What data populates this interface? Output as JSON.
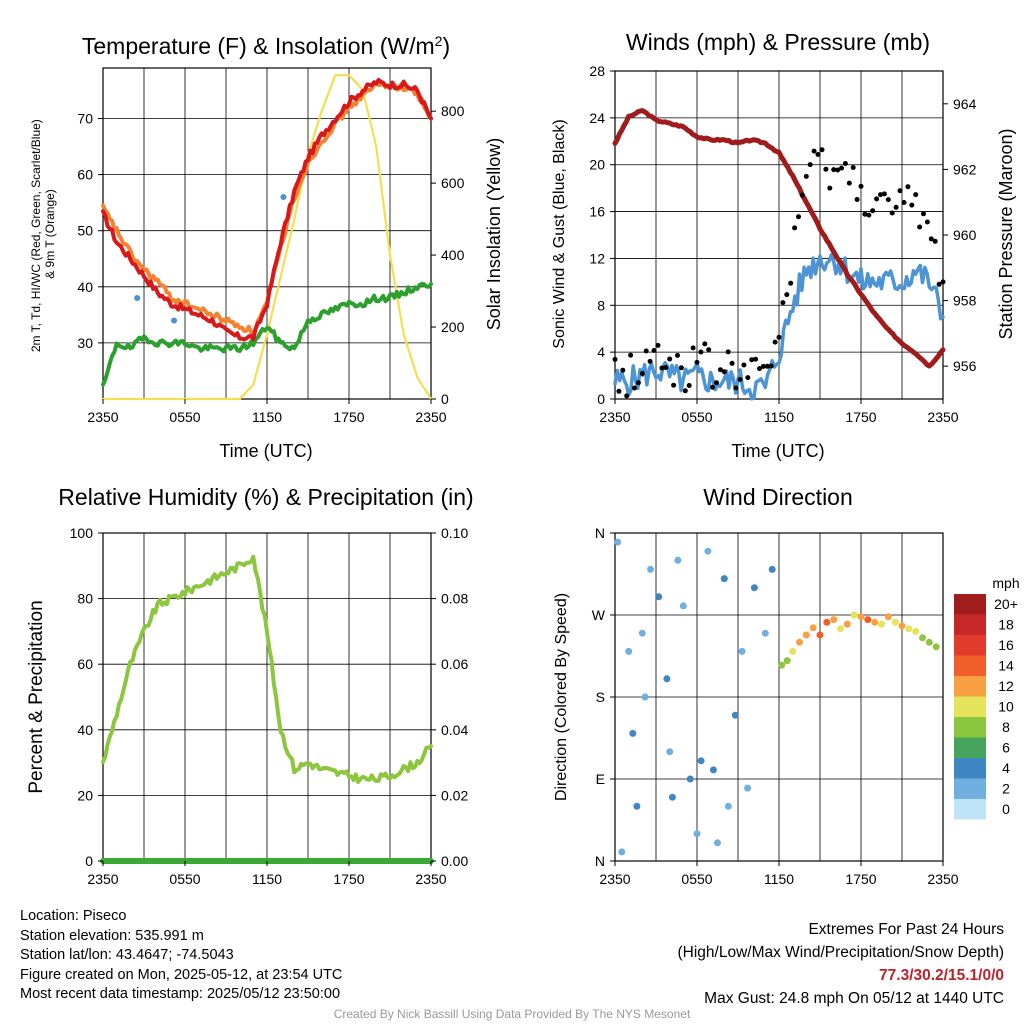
{
  "colors": {
    "temp_2m": "#d7191c",
    "dewpoint": "#2ca02c",
    "windchill": "#4a90d9",
    "temp_9m": "#f58231",
    "insolation": "#f5de50",
    "wind_speed": "#4d94d4",
    "wind_gust": "#000000",
    "pressure": "#a01c1c",
    "humidity": "#8cc63f",
    "precip": "#3aaa35"
  },
  "footer": {
    "location": "Location: Piseco",
    "elevation": "Station elevation: 535.991 m",
    "latlon": "Station lat/lon: 43.4647; -74.5043",
    "created": "Figure created on Mon, 2025-05-12, at 23:54 UTC",
    "timestamp": "Most recent data timestamp: 2025/05/12 23:50:00",
    "extremes_title": "Extremes For Past 24 Hours",
    "extremes_sub": "(High/Low/Max Wind/Precipitation/Snow Depth)",
    "extremes_values": "77.3/30.2/15.1/0/0",
    "max_gust": "Max Gust: 24.8 mph On 05/12 at 1440 UTC",
    "credit": "Created By Nick Bassill Using Data Provided By The NYS Mesonet"
  },
  "chart_data": [
    {
      "type": "line",
      "title": "Temperature (F) & Insolation (W/m²)",
      "xlabel": "Time (UTC)",
      "ylabel": "2m T, Td, HI/WC (Red, Green, Scarlet/Blue) & 9m T (Orange)",
      "ylabel_lines": [
        "2m T, Td, HI/WC (Red, Green, Scarlet/Blue)",
        "& 9m T (Orange)"
      ],
      "y2label": "Solar Insolation (Yellow)",
      "xticks": [
        "2350",
        "0550",
        "1150",
        "1750",
        "2350"
      ],
      "ylim": [
        20,
        79
      ],
      "yticks": [
        30,
        40,
        50,
        60,
        70
      ],
      "y2lim": [
        0,
        920
      ],
      "y2ticks": [
        0,
        200,
        400,
        600,
        800
      ],
      "grid": true,
      "series": [
        {
          "name": "2m T",
          "axis": "left",
          "color": "#d7191c",
          "x": [
            0,
            1,
            2,
            3,
            4,
            5,
            6,
            7,
            8,
            9,
            10,
            11,
            12,
            13,
            14,
            15,
            16,
            17,
            18,
            19,
            20,
            21,
            22,
            23,
            24
          ],
          "values": [
            53,
            48,
            45,
            42,
            39,
            37,
            36,
            35,
            34,
            32,
            31,
            31,
            37,
            48,
            57,
            63,
            67,
            70,
            73,
            75,
            76.5,
            76,
            76,
            75,
            70
          ]
        },
        {
          "name": "9m T",
          "axis": "left",
          "color": "#f58231",
          "x": [
            0,
            1,
            2,
            3,
            4,
            5,
            6,
            7,
            8,
            9,
            10,
            11,
            12,
            13,
            14,
            15,
            16,
            17,
            18,
            19,
            20,
            21,
            22,
            23,
            24
          ],
          "values": [
            54,
            50,
            46,
            43,
            41,
            38,
            37,
            36,
            35,
            34,
            33,
            32,
            37,
            47,
            56,
            62,
            66,
            69,
            72,
            74,
            76,
            76,
            75.5,
            74.5,
            70
          ]
        },
        {
          "name": "Td",
          "axis": "left",
          "color": "#2ca02c",
          "x": [
            0,
            1,
            2,
            3,
            4,
            5,
            6,
            7,
            8,
            9,
            10,
            11,
            12,
            13,
            14,
            15,
            16,
            17,
            18,
            19,
            20,
            21,
            22,
            23,
            24
          ],
          "values": [
            22,
            30,
            29,
            31,
            30,
            30,
            30,
            29,
            29,
            29,
            29,
            30,
            33,
            30,
            29,
            34,
            35,
            36,
            37,
            37,
            38,
            38,
            39,
            40,
            40.5
          ]
        },
        {
          "name": "HI/WC",
          "axis": "left",
          "color": "#4a90d9",
          "x": [
            2.5,
            5.2,
            13.2
          ],
          "values": [
            38,
            34,
            56
          ]
        },
        {
          "name": "Insolation",
          "axis": "right",
          "color": "#f5de50",
          "x": [
            0,
            1,
            2,
            3,
            4,
            5,
            6,
            7,
            8,
            9,
            10,
            11,
            12,
            13,
            14,
            15,
            16,
            17,
            18,
            19,
            20,
            21,
            22,
            23,
            24
          ],
          "values": [
            0,
            0,
            0,
            0,
            0,
            0,
            0,
            0,
            0,
            0,
            0,
            40,
            180,
            340,
            500,
            680,
            800,
            900,
            900,
            860,
            700,
            400,
            180,
            60,
            0
          ]
        }
      ]
    },
    {
      "type": "line",
      "title": "Winds (mph) & Pressure (mb)",
      "xlabel": "Time (UTC)",
      "ylabel": "Sonic Wind & Gust (Blue, Black)",
      "y2label": "Station Pressure (Maroon)",
      "xticks": [
        "2350",
        "0550",
        "1150",
        "1750",
        "2350"
      ],
      "ylim": [
        0,
        28
      ],
      "yticks": [
        0,
        4,
        8,
        12,
        16,
        20,
        24,
        28
      ],
      "y2lim": [
        955,
        965
      ],
      "y2ticks": [
        956,
        958,
        960,
        962,
        964
      ],
      "grid": true,
      "series": [
        {
          "name": "Sonic Wind",
          "axis": "left",
          "color": "#4d94d4",
          "x": [
            0,
            1,
            2,
            3,
            4,
            5,
            6,
            7,
            8,
            9,
            10,
            11,
            12,
            13,
            14,
            15,
            16,
            17,
            18,
            19,
            20,
            21,
            22,
            23,
            24
          ],
          "values": [
            1.5,
            1.5,
            2,
            2.5,
            2,
            1.5,
            2,
            1.5,
            1.5,
            1.5,
            1,
            1,
            4,
            8,
            11,
            12,
            12,
            11,
            10,
            10,
            10,
            10,
            11,
            10,
            7
          ]
        },
        {
          "name": "Gust",
          "axis": "left",
          "color": "#000000",
          "x": [
            0,
            1,
            2,
            3,
            4,
            5,
            6,
            7,
            8,
            9,
            10,
            11,
            12,
            13,
            14,
            15,
            16,
            17,
            18,
            19,
            20,
            21,
            22,
            23,
            24
          ],
          "values": [
            2,
            2,
            3,
            3.5,
            3,
            2.5,
            3,
            2.5,
            2.5,
            2.5,
            2,
            1.5,
            6,
            12,
            19,
            20,
            20,
            19,
            18,
            17,
            16,
            16,
            17,
            14,
            10
          ]
        },
        {
          "name": "Station Pressure",
          "axis": "right",
          "color": "#a01c1c",
          "x": [
            0,
            1,
            2,
            3,
            4,
            5,
            6,
            7,
            8,
            9,
            10,
            11,
            12,
            13,
            14,
            15,
            16,
            17,
            18,
            19,
            20,
            21,
            22,
            23,
            24
          ],
          "values": [
            962.8,
            963.6,
            963.8,
            963.5,
            963.4,
            963.3,
            963.0,
            962.9,
            962.9,
            962.8,
            962.9,
            962.8,
            962.5,
            961.8,
            961.0,
            960.2,
            959.5,
            958.8,
            958.2,
            957.6,
            957.1,
            956.7,
            956.4,
            956.0,
            956.5
          ]
        }
      ]
    },
    {
      "type": "line",
      "title": "Relative Humidity (%) & Precipitation (in)",
      "xlabel": "",
      "ylabel": "Percent & Precipitation",
      "xticks": [
        "2350",
        "0550",
        "1150",
        "1750",
        "2350"
      ],
      "ylim": [
        0,
        100
      ],
      "yticks": [
        0,
        20,
        40,
        60,
        80,
        100
      ],
      "y2lim": [
        0,
        0.1
      ],
      "y2ticks": [
        0.0,
        0.02,
        0.04,
        0.06,
        0.08,
        0.1
      ],
      "grid": true,
      "series": [
        {
          "name": "Relative Humidity",
          "axis": "left",
          "color": "#8cc63f",
          "x": [
            0,
            1,
            2,
            3,
            4,
            5,
            6,
            7,
            8,
            9,
            10,
            11,
            12,
            13,
            14,
            15,
            16,
            17,
            18,
            19,
            20,
            21,
            22,
            23,
            24
          ],
          "values": [
            30,
            45,
            60,
            70,
            78,
            80,
            82,
            84,
            86,
            88,
            90,
            93,
            70,
            40,
            28,
            30,
            28,
            27,
            26,
            25,
            25,
            26,
            28,
            30,
            35
          ]
        },
        {
          "name": "Precipitation",
          "axis": "right",
          "color": "#3aaa35",
          "x": [
            0,
            24
          ],
          "values": [
            0,
            0
          ]
        }
      ]
    },
    {
      "type": "scatter",
      "title": "Wind Direction",
      "xlabel": "",
      "ylabel": "Direction (Colored By Speed)",
      "xticks": [
        "2350",
        "0550",
        "1150",
        "1750",
        "2350"
      ],
      "yticks": [
        "N",
        "E",
        "S",
        "W",
        "N"
      ],
      "ylim": [
        0,
        360
      ],
      "grid": true,
      "legend": {
        "title": "mph",
        "placement": "right",
        "labels": [
          "20+",
          "18",
          "16",
          "14",
          "12",
          "10",
          "8",
          "6",
          "4",
          "2",
          "0"
        ],
        "colors": [
          "#a11d1d",
          "#c62828",
          "#e03b2b",
          "#f05f2a",
          "#f9a043",
          "#e4e35a",
          "#8cc63f",
          "#45a55c",
          "#3f86c4",
          "#6fb0e0",
          "#bfe4f8"
        ]
      },
      "points": [
        [
          0.2,
          350,
          1
        ],
        [
          0.5,
          10,
          2
        ],
        [
          1.0,
          230,
          2
        ],
        [
          1.3,
          140,
          4
        ],
        [
          1.6,
          60,
          3
        ],
        [
          2.0,
          250,
          1
        ],
        [
          2.2,
          180,
          1
        ],
        [
          2.6,
          320,
          2
        ],
        [
          3.2,
          290,
          3
        ],
        [
          3.8,
          200,
          4
        ],
        [
          4.0,
          120,
          2
        ],
        [
          4.2,
          70,
          3
        ],
        [
          4.6,
          330,
          2
        ],
        [
          5.0,
          280,
          1
        ],
        [
          5.5,
          90,
          4
        ],
        [
          6.0,
          30,
          2
        ],
        [
          6.3,
          110,
          3
        ],
        [
          6.8,
          340,
          1
        ],
        [
          7.2,
          100,
          4
        ],
        [
          7.5,
          20,
          2
        ],
        [
          8.0,
          310,
          3
        ],
        [
          8.3,
          60,
          2
        ],
        [
          8.8,
          160,
          4
        ],
        [
          9.3,
          230,
          1
        ],
        [
          9.7,
          80,
          2
        ],
        [
          10.2,
          300,
          4
        ],
        [
          11.0,
          250,
          2
        ],
        [
          11.5,
          320,
          3
        ],
        [
          12.2,
          215,
          8
        ],
        [
          12.6,
          220,
          7
        ],
        [
          13.0,
          230,
          9
        ],
        [
          13.5,
          240,
          12
        ],
        [
          14.0,
          248,
          12
        ],
        [
          14.5,
          256,
          11
        ],
        [
          15.0,
          248,
          14
        ],
        [
          15.5,
          262,
          13
        ],
        [
          16.0,
          265,
          12
        ],
        [
          16.5,
          255,
          10
        ],
        [
          17.0,
          260,
          12
        ],
        [
          17.5,
          270,
          9
        ],
        [
          18.0,
          268,
          11
        ],
        [
          18.5,
          265,
          13
        ],
        [
          19.0,
          262,
          12
        ],
        [
          19.5,
          260,
          10
        ],
        [
          20.0,
          268,
          11
        ],
        [
          20.5,
          262,
          9
        ],
        [
          21.0,
          258,
          12
        ],
        [
          21.5,
          255,
          10
        ],
        [
          22.0,
          252,
          9
        ],
        [
          22.5,
          245,
          8
        ],
        [
          23.0,
          240,
          7
        ],
        [
          23.5,
          235,
          7
        ]
      ]
    }
  ]
}
